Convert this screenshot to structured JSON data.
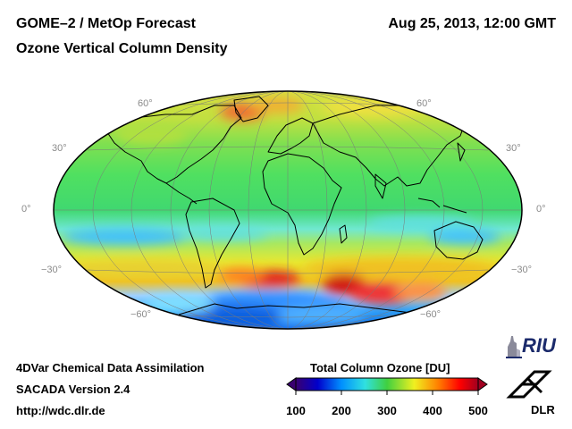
{
  "header": {
    "title": "GOME–2 / MetOp Forecast",
    "subtitle": "Ozone Vertical Column Density",
    "datetime": "Aug 25, 2013, 12:00 GMT"
  },
  "map": {
    "projection": "Hammer-Aitoff",
    "lat_labels_left": [
      "60°",
      "30°",
      "0°",
      "−30°",
      "−60°"
    ],
    "lat_labels_right": [
      "60°",
      "30°",
      "0°",
      "−30°",
      "−60°"
    ]
  },
  "colorbar": {
    "title": "Total Column Ozone [DU]",
    "ticks": [
      "100",
      "200",
      "300",
      "400",
      "500"
    ],
    "colors": [
      "#3a0070",
      "#0000cc",
      "#0090ff",
      "#30e0e0",
      "#40d040",
      "#f0f020",
      "#ff8000",
      "#ff0000",
      "#a00020"
    ]
  },
  "footer": {
    "line1": "4DVar Chemical Data Assimilation",
    "line2": "SACADA Version 2.4",
    "line3": "http://wdc.dlr.de"
  },
  "logos": {
    "riu": "RIU",
    "dlr": "DLR"
  }
}
